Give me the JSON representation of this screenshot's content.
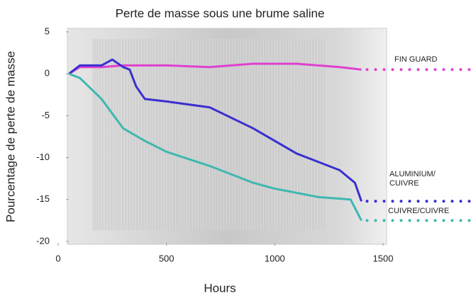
{
  "chart_data": {
    "type": "line",
    "title": "Perte de masse sous une brume saline",
    "x_label": "Hours",
    "y_label": "Pourcentage de perte de masse",
    "xlim": [
      0,
      1500
    ],
    "xticks": [
      0,
      500,
      1000,
      1500
    ],
    "ylim": [
      -20,
      5
    ],
    "yticks": [
      5,
      0,
      -5,
      -10,
      -15,
      -20
    ],
    "series": [
      {
        "name": "FIN GUARD",
        "color": "#e040d0",
        "x": [
          50,
          100,
          200,
          300,
          500,
          700,
          900,
          1100,
          1300,
          1400
        ],
        "values": [
          0,
          0.8,
          0.8,
          1,
          1,
          0.8,
          1.2,
          1.2,
          0.8,
          0.5
        ]
      },
      {
        "name": "ALUMINIUM/ CUIVRE",
        "color": "#3a2fd0",
        "x": [
          50,
          100,
          200,
          250,
          300,
          330,
          360,
          400,
          500,
          700,
          900,
          1100,
          1200,
          1300,
          1370,
          1400
        ],
        "values": [
          0,
          1,
          1,
          1.7,
          0.8,
          0.5,
          -1.5,
          -3,
          -3.3,
          -4,
          -6.5,
          -9.5,
          -10.5,
          -11.5,
          -13,
          -15.2
        ]
      },
      {
        "name": "CUIVRE/CUIVRE",
        "color": "#3fb8b0",
        "x": [
          50,
          100,
          200,
          300,
          400,
          500,
          700,
          900,
          1000,
          1200,
          1350,
          1400
        ],
        "values": [
          0,
          -0.5,
          -3,
          -6.5,
          -8,
          -9.3,
          -11,
          -13,
          -13.7,
          -14.7,
          -15,
          -17.5
        ]
      }
    ]
  }
}
